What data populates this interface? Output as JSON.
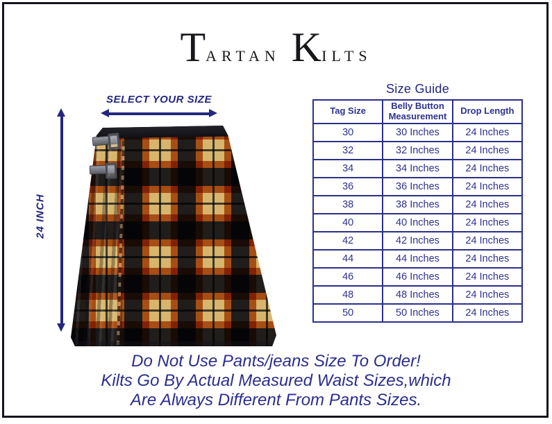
{
  "logo": {
    "t_large": "T",
    "t_rest": "ARTAN",
    "k_large": "K",
    "k_rest": "ILTS"
  },
  "measurements": {
    "select_label": "SELECT YOUR SIZE",
    "drop_label": "24 INCH"
  },
  "size_guide": {
    "title": "Size Guide",
    "columns": [
      "Tag Size",
      "Belly Button Measurement",
      "Drop Length"
    ],
    "rows": [
      [
        "30",
        "30 Inches",
        "24 Inches"
      ],
      [
        "32",
        "32 Inches",
        "24 Inches"
      ],
      [
        "34",
        "34 Inches",
        "24 Inches"
      ],
      [
        "36",
        "36 Inches",
        "24 Inches"
      ],
      [
        "38",
        "38 Inches",
        "24 Inches"
      ],
      [
        "40",
        "40 Inches",
        "24 Inches"
      ],
      [
        "42",
        "42 Inches",
        "24 Inches"
      ],
      [
        "44",
        "44 Inches",
        "24 Inches"
      ],
      [
        "46",
        "46 Inches",
        "24 Inches"
      ],
      [
        "48",
        "48 Inches",
        "24 Inches"
      ],
      [
        "50",
        "50 Inches",
        "24 Inches"
      ]
    ]
  },
  "footer": {
    "lines": [
      "Do Not Use Pants/jeans Size To Order!",
      "Kilts Go By Actual Measured Waist Sizes,which",
      "Are Always Different From Pants Sizes."
    ]
  },
  "colors": {
    "navy": "#2b2f88",
    "arrow_navy": "#23277f",
    "frame": "#14141e",
    "tartan_black": "#23222a",
    "tartan_orange": "#b65d1e",
    "tartan_cream": "#ead7a6"
  }
}
